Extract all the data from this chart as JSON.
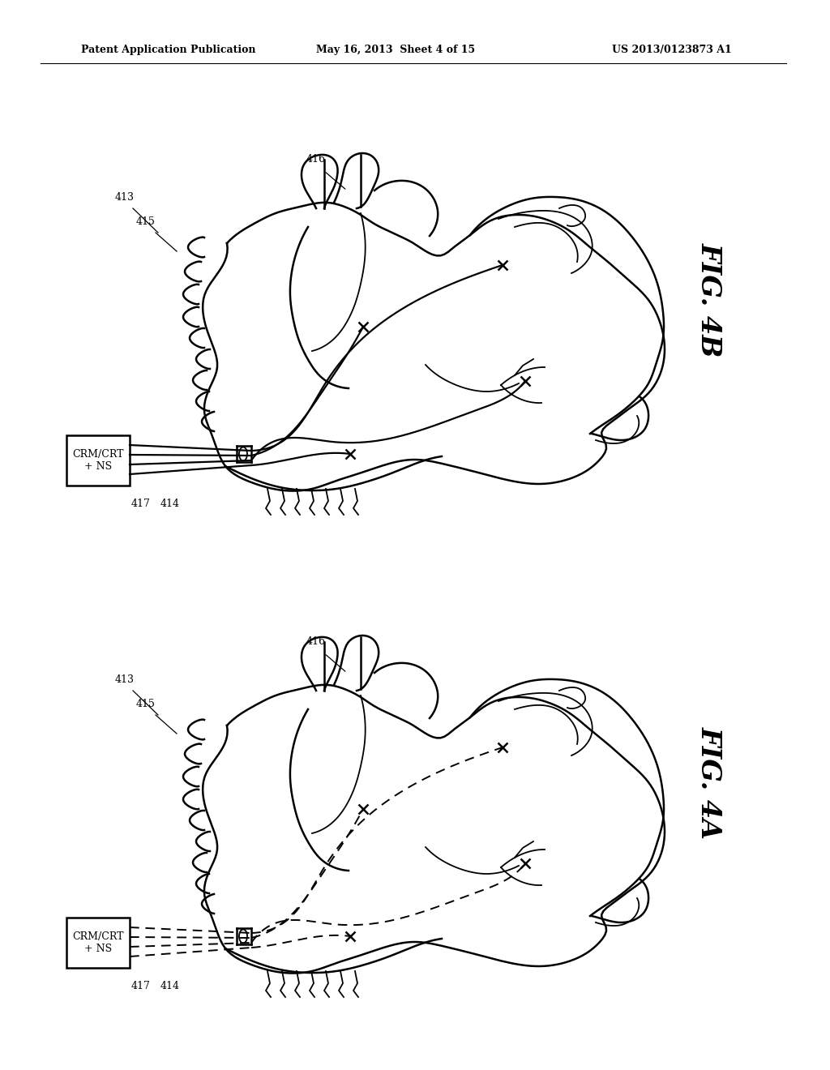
{
  "bg": "#ffffff",
  "lc": "#000000",
  "header_left": "Patent Application Publication",
  "header_mid": "May 16, 2013  Sheet 4 of 15",
  "header_right": "US 2013/0123873 A1",
  "fig4B": "FIG. 4B",
  "fig4A": "FIG. 4A",
  "box_text": "CRM/CRT\n+ NS",
  "lw_main": 1.8,
  "lw_thin": 1.3,
  "lw_lead": 1.6,
  "lw_dash": 1.4
}
